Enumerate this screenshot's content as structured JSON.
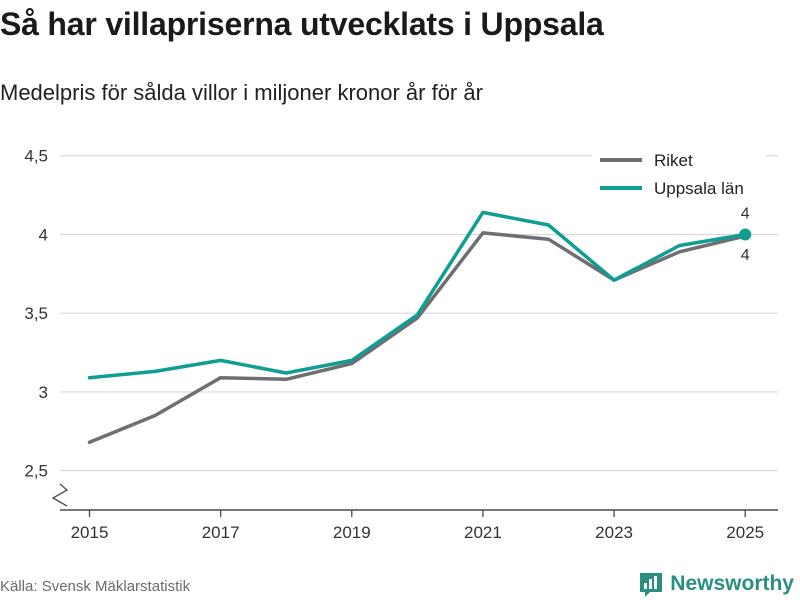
{
  "header": {
    "title": "Så har villapriserna utvecklats i Uppsala",
    "subtitle": "Medelpris för sålda villor i miljoner kronor år för år"
  },
  "footer": {
    "source": "Källa: Svensk Mäklarstatistik",
    "brand": "Newsworthy",
    "brand_icon": "bar-chart-icon"
  },
  "colors": {
    "riket": "#6e6e73",
    "uppsala": "#0e9e93",
    "grid": "#d9d9d9",
    "axis": "#4a4a4a",
    "brand": "#2a8f7f"
  },
  "chart_data": {
    "type": "line",
    "title": "Så har villapriserna utvecklats i Uppsala",
    "subtitle": "Medelpris för sålda villor i miljoner kronor år för år",
    "xlabel": "",
    "ylabel": "",
    "x": [
      2015,
      2016,
      2017,
      2018,
      2019,
      2020,
      2021,
      2022,
      2023,
      2024,
      2025
    ],
    "xticks": [
      "2015",
      "2017",
      "2019",
      "2021",
      "2023",
      "2025"
    ],
    "xtick_values": [
      2015,
      2017,
      2019,
      2021,
      2023,
      2025
    ],
    "ylim": [
      2.25,
      4.6
    ],
    "yticks": [
      2.5,
      3,
      3.5,
      4,
      4.5
    ],
    "ytick_labels": [
      "2,5",
      "3",
      "3,5",
      "4",
      "4,5"
    ],
    "axis_break": true,
    "grid": true,
    "legend_position": "top-right",
    "series": [
      {
        "name": "Riket",
        "color": "#6e6e73",
        "values": [
          2.68,
          2.85,
          3.09,
          3.08,
          3.18,
          3.47,
          4.01,
          3.97,
          3.71,
          3.89,
          3.99
        ],
        "end_label": "4"
      },
      {
        "name": "Uppsala län",
        "color": "#0e9e93",
        "values": [
          3.09,
          3.13,
          3.2,
          3.12,
          3.2,
          3.49,
          4.14,
          4.06,
          3.71,
          3.93,
          4.0
        ],
        "end_label": "4"
      }
    ]
  }
}
